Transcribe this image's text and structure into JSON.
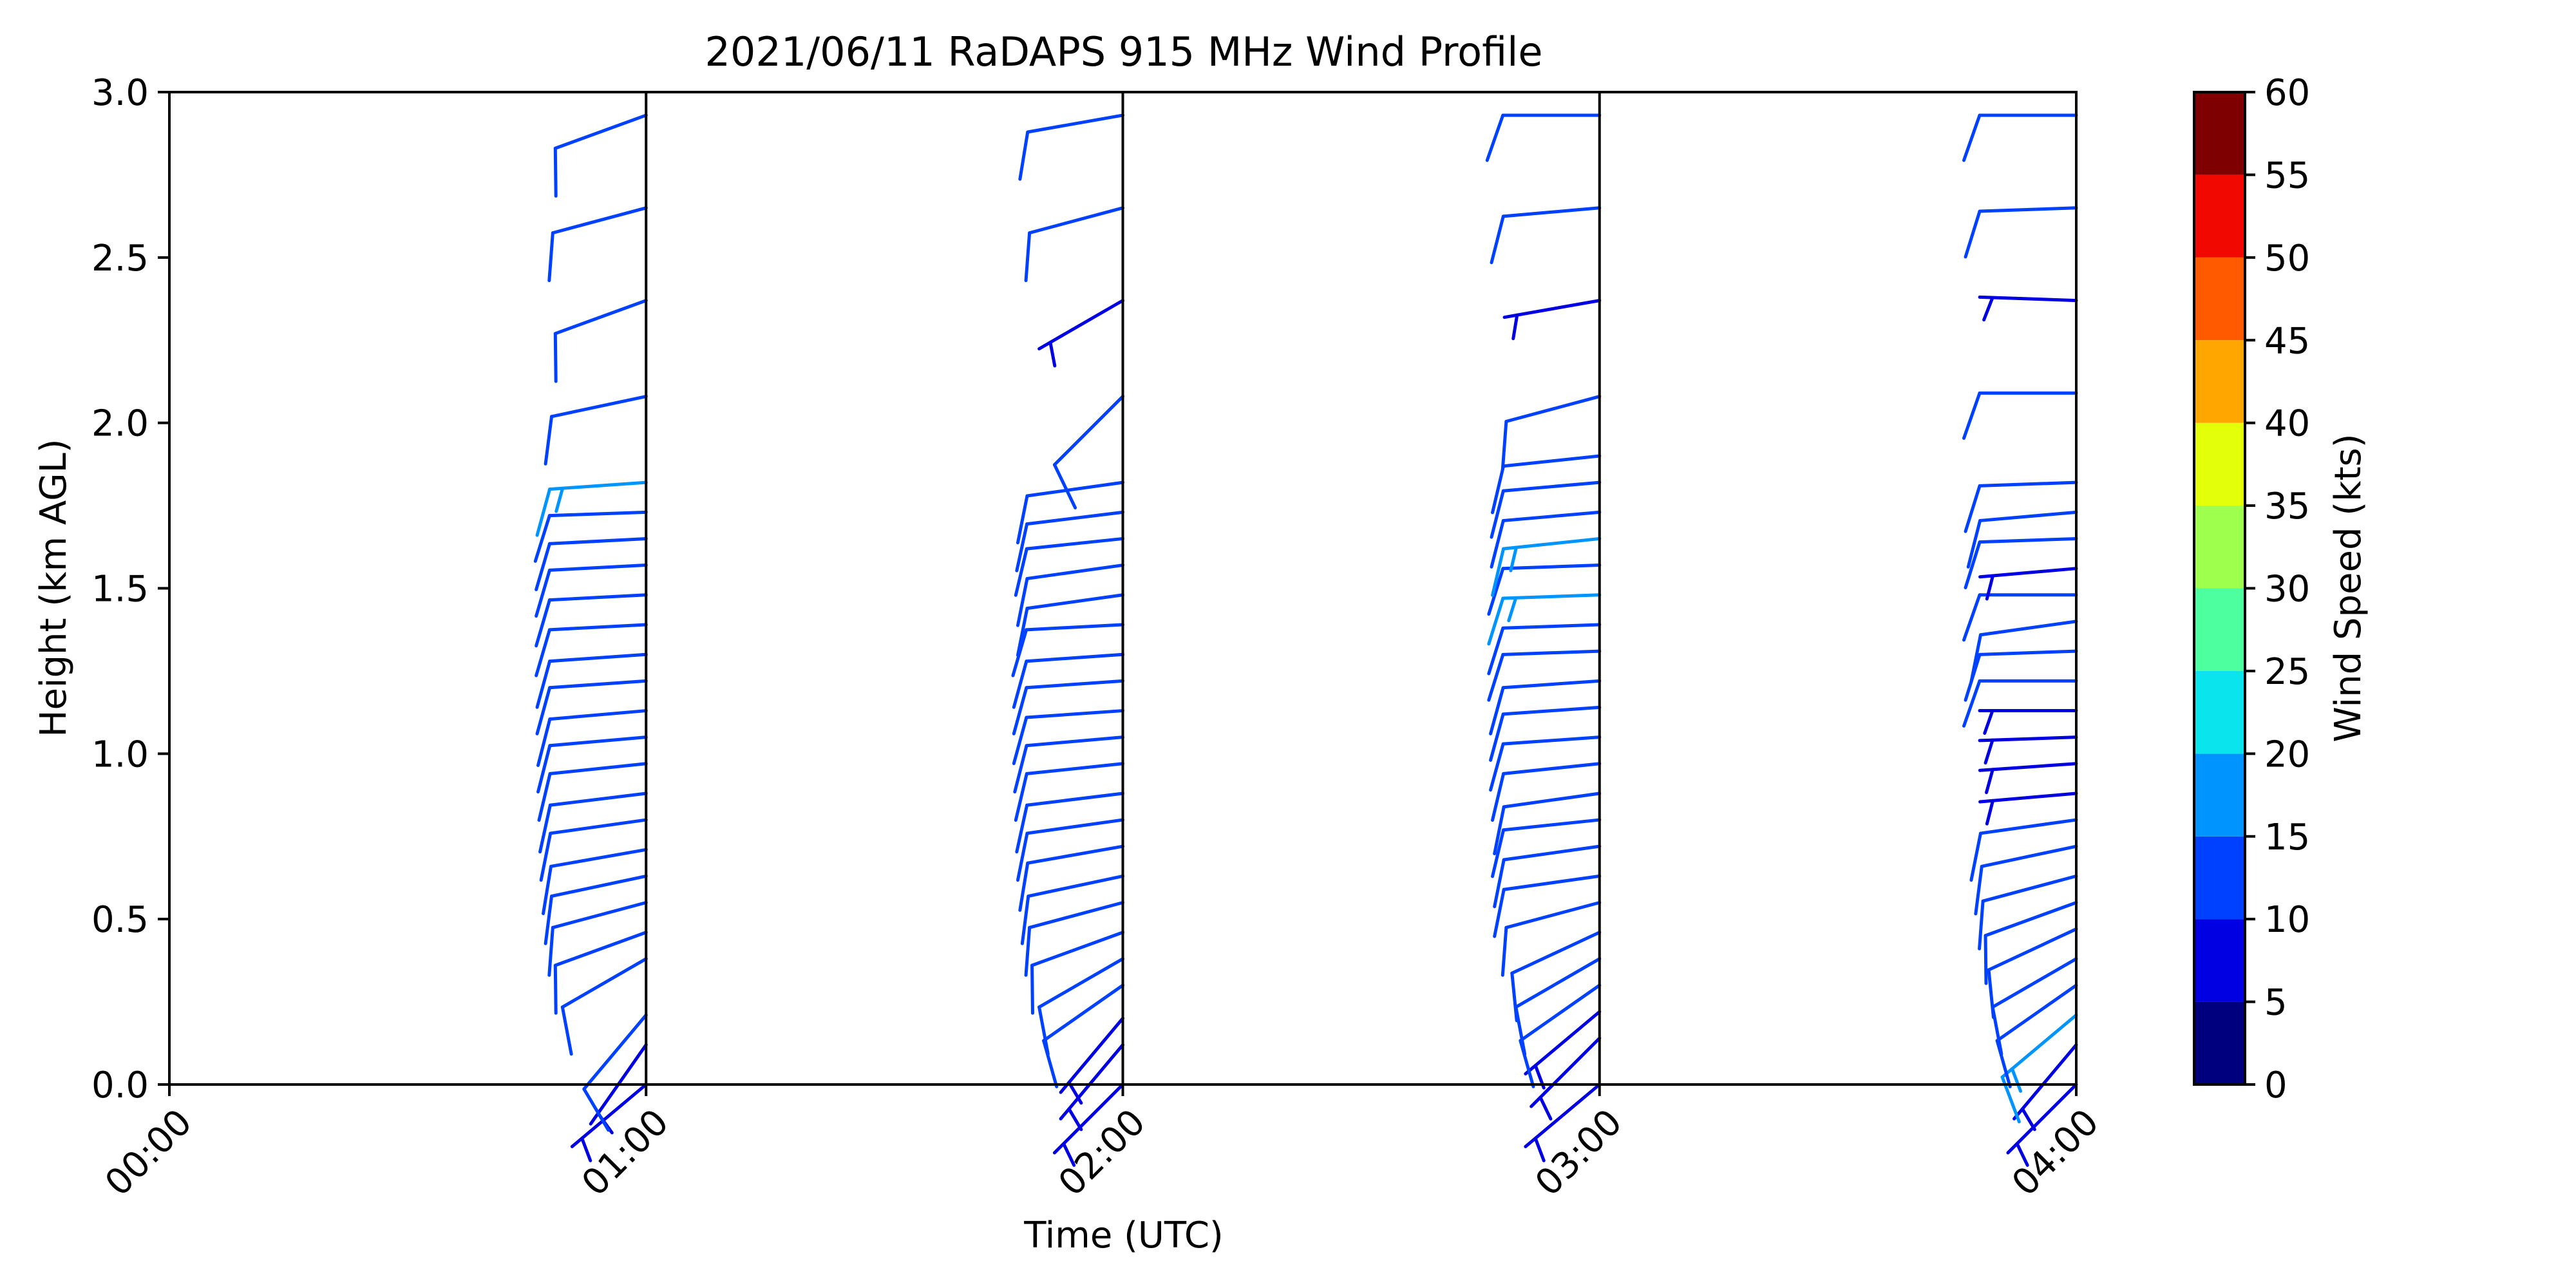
{
  "chart_data": {
    "type": "wind-barb profile",
    "title": "2021/06/11 RaDAPS 915 MHz Wind Profile",
    "xlabel": "Time (UTC)",
    "ylabel": "Height (km AGL)",
    "xlim": [
      "00:00",
      "04:00"
    ],
    "ylim": [
      0.0,
      3.0
    ],
    "xticks": [
      "00:00",
      "01:00",
      "02:00",
      "03:00",
      "04:00"
    ],
    "yticks": [
      "0.0",
      "0.5",
      "1.0",
      "1.5",
      "2.0",
      "2.5",
      "3.0"
    ],
    "colorbar": {
      "label": "Wind Speed (kts)",
      "ticks": [
        "0",
        "5",
        "10",
        "15",
        "20",
        "25",
        "30",
        "35",
        "40",
        "45",
        "50",
        "55",
        "60"
      ],
      "bins": [
        0,
        5,
        10,
        15,
        20,
        25,
        30,
        35,
        40,
        45,
        50,
        55,
        60
      ],
      "colors": [
        "#00007f",
        "#0000e3",
        "#0040ff",
        "#0094ff",
        "#0ae4ed",
        "#4dff9f",
        "#9fff4d",
        "#e4ff0a",
        "#ffa700",
        "#ff5a00",
        "#f10800",
        "#7f0000"
      ]
    },
    "profile_times": [
      "01:00",
      "02:00",
      "03:00",
      "04:00"
    ],
    "series": [
      {
        "time": "01:00",
        "heights": [
          0.0,
          0.12,
          0.21,
          0.38,
          0.46,
          0.55,
          0.63,
          0.71,
          0.8,
          0.88,
          0.97,
          1.05,
          1.13,
          1.22,
          1.3,
          1.39,
          1.48,
          1.57,
          1.65,
          1.73,
          1.82,
          2.08,
          2.37,
          2.65,
          2.93
        ],
        "speeds": [
          8,
          9,
          10,
          10,
          10,
          11,
          11,
          11,
          11,
          11,
          10,
          10,
          10,
          10,
          11,
          11,
          11,
          11,
          12,
          12,
          17,
          12,
          12,
          12,
          12
        ],
        "directions": [
          230,
          215,
          220,
          240,
          250,
          255,
          258,
          260,
          262,
          263,
          264,
          265,
          265,
          266,
          266,
          267,
          267,
          267,
          267,
          268,
          266,
          258,
          250,
          255,
          250
        ]
      },
      {
        "time": "02:00",
        "heights": [
          0.0,
          0.12,
          0.2,
          0.3,
          0.38,
          0.46,
          0.55,
          0.63,
          0.72,
          0.8,
          0.88,
          0.97,
          1.05,
          1.13,
          1.22,
          1.3,
          1.39,
          1.48,
          1.57,
          1.65,
          1.73,
          1.82,
          2.08,
          2.37,
          2.65,
          2.93
        ],
        "speeds": [
          8,
          8,
          9,
          10,
          10,
          10,
          11,
          11,
          11,
          11,
          11,
          11,
          11,
          11,
          11,
          11,
          11,
          11,
          11,
          11,
          11,
          11,
          11,
          8,
          11,
          11
        ],
        "directions": [
          225,
          220,
          220,
          235,
          240,
          250,
          255,
          258,
          260,
          262,
          263,
          264,
          265,
          266,
          266,
          266,
          267,
          262,
          262,
          264,
          263,
          262,
          225,
          240,
          255,
          260
        ]
      },
      {
        "time": "03:00",
        "heights": [
          0.0,
          0.14,
          0.22,
          0.3,
          0.38,
          0.46,
          0.55,
          0.63,
          0.72,
          0.8,
          0.88,
          0.97,
          1.05,
          1.14,
          1.22,
          1.31,
          1.39,
          1.48,
          1.57,
          1.65,
          1.73,
          1.82,
          1.9,
          2.08,
          2.37,
          2.65,
          2.93
        ],
        "speeds": [
          8,
          8,
          9,
          10,
          10,
          10,
          10,
          10,
          11,
          11,
          11,
          11,
          11,
          11,
          11,
          11,
          11,
          16,
          11,
          16,
          11,
          11,
          11,
          11,
          8,
          11,
          11
        ],
        "directions": [
          230,
          225,
          230,
          235,
          240,
          245,
          255,
          262,
          262,
          264,
          262,
          264,
          266,
          266,
          266,
          268,
          268,
          268,
          268,
          264,
          265,
          265,
          264,
          255,
          260,
          265,
          270
        ]
      },
      {
        "time": "04:00",
        "heights": [
          0.0,
          0.12,
          0.21,
          0.3,
          0.38,
          0.47,
          0.55,
          0.63,
          0.72,
          0.8,
          0.88,
          0.97,
          1.05,
          1.13,
          1.22,
          1.31,
          1.4,
          1.48,
          1.56,
          1.65,
          1.73,
          1.82,
          2.09,
          2.37,
          2.65,
          2.93
        ],
        "speeds": [
          9,
          9,
          16,
          10,
          10,
          10,
          10,
          10,
          10,
          10,
          9,
          9,
          9,
          9,
          11,
          11,
          11,
          11,
          9,
          11,
          10,
          11,
          11,
          9,
          11,
          11
        ],
        "directions": [
          225,
          220,
          230,
          235,
          240,
          245,
          250,
          255,
          258,
          262,
          265,
          266,
          268,
          270,
          270,
          268,
          262,
          270,
          265,
          268,
          265,
          268,
          270,
          272,
          268,
          270
        ]
      }
    ]
  }
}
